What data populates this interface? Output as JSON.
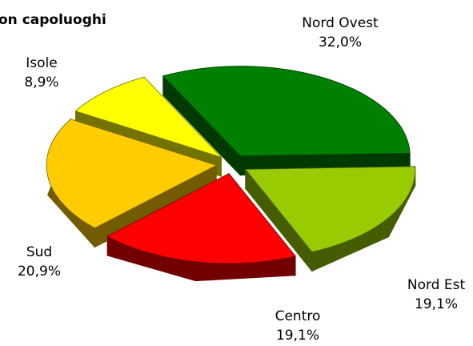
{
  "chart_data": {
    "type": "pie3d",
    "title": "on capoluoghi",
    "categories": [
      "Nord Ovest",
      "Nord Est",
      "Centro",
      "Sud",
      "Isole"
    ],
    "values": [
      32.0,
      19.1,
      19.1,
      20.9,
      8.9
    ],
    "value_labels": [
      "32,0%",
      "19,1%",
      "19,1%",
      "20,9%",
      "8,9%"
    ],
    "colors": [
      "#008000",
      "#99cc00",
      "#ff0000",
      "#ffcc00",
      "#ffff00"
    ]
  }
}
